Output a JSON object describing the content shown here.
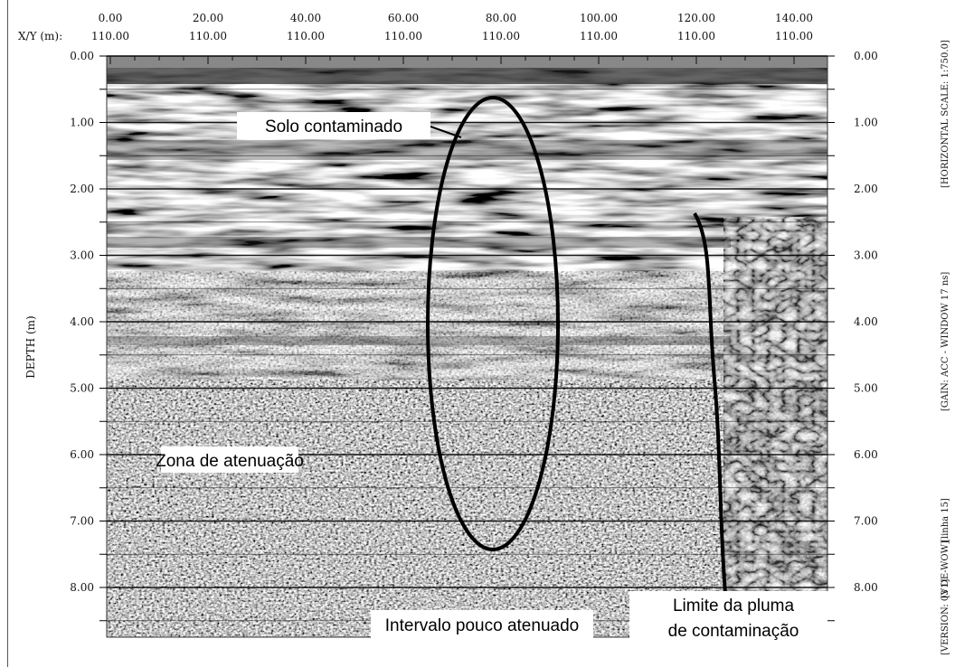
{
  "x_axis": {
    "label": "X/Y (m):",
    "distance": [
      "0.00",
      "20.00",
      "40.00",
      "60.00",
      "80.00",
      "100.00",
      "120.00",
      "140.00"
    ],
    "offset": [
      "110.00",
      "110.00",
      "110.00",
      "110.00",
      "110.00",
      "110.00",
      "110.00",
      "110.00"
    ]
  },
  "y_axis": {
    "label": "DEPTH (m)",
    "left": [
      "0.00",
      "1.00",
      "2.00",
      "3.00",
      "4.00",
      "5.00",
      "6.00",
      "7.00",
      "8.00"
    ],
    "right": [
      "0.00",
      "1.00",
      "2.00",
      "3.00",
      "4.00",
      "5.00",
      "6.00",
      "7.00",
      "8.00"
    ]
  },
  "annotations": {
    "solo": "Solo contaminado",
    "zona": "Zona de atenuação",
    "limite": [
      "Limite da pluma",
      "de contaminação"
    ],
    "intervalo": "Intervalo pouco atenuado"
  },
  "side_notes": [
    "[VERSION: 03 DE-WOW]",
    "[V1]",
    "[linha 15]",
    "[GAIN: ACC - WINDOW 17 ns]",
    "[HORIZONTAL SCALE: 1:750.0]"
  ]
}
